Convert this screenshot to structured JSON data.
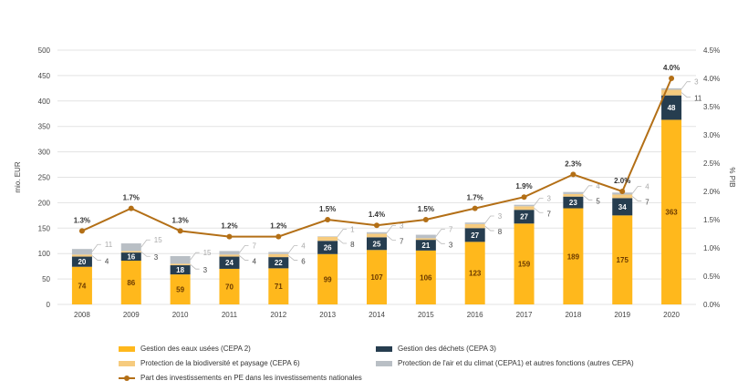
{
  "chart_data": {
    "type": "bar",
    "stacked": true,
    "categories": [
      "2008",
      "2009",
      "2010",
      "2011",
      "2012",
      "2013",
      "2014",
      "2015",
      "2016",
      "2017",
      "2018",
      "2019",
      "2020"
    ],
    "series": [
      {
        "name": "Gestion des eaux usées (CEPA 2)",
        "color": "#FFB81C",
        "values": [
          74,
          86,
          59,
          70,
          71,
          99,
          107,
          106,
          123,
          159,
          189,
          175,
          363
        ]
      },
      {
        "name": "Gestion des déchets (CEPA 3)",
        "color": "#263D4F",
        "values": [
          20,
          16,
          18,
          24,
          22,
          26,
          25,
          21,
          27,
          27,
          23,
          34,
          48
        ]
      },
      {
        "name": "Protection de la biodiversité et paysage (CEPA 6)",
        "color": "#F6CB7E",
        "values": [
          4,
          3,
          3,
          4,
          6,
          8,
          7,
          3,
          8,
          7,
          5,
          7,
          11
        ]
      },
      {
        "name": "Protection de l'air et du climat (CEPA1) et autres fonctions (autres CEPA)",
        "color": "#B9BFC5",
        "values": [
          11,
          15,
          15,
          7,
          4,
          1,
          3,
          7,
          3,
          3,
          4,
          4,
          3
        ]
      }
    ],
    "line": {
      "name": "Part des investissements en PE dans les investissements nationales",
      "color": "#B36F16",
      "axis": "right",
      "values": [
        1.3,
        1.7,
        1.3,
        1.2,
        1.2,
        1.5,
        1.4,
        1.5,
        1.7,
        1.9,
        2.3,
        2.0,
        4.0
      ],
      "labels": [
        "1.3%",
        "1.7%",
        "1.3%",
        "1.2%",
        "1.2%",
        "1.5%",
        "1.4%",
        "1.5%",
        "1.7%",
        "1.9%",
        "2.3%",
        "2.0%",
        "4.0%"
      ]
    },
    "ylabel": "mio. EUR",
    "y2label": "% PIB",
    "ylim": [
      0,
      500
    ],
    "y2lim": [
      0,
      4.5
    ],
    "yticks": [
      "0",
      "50",
      "100",
      "150",
      "200",
      "250",
      "300",
      "350",
      "400",
      "450",
      "500"
    ],
    "y2ticks": [
      "0.0%",
      "0.5%",
      "1.0%",
      "1.5%",
      "2.0%",
      "2.5%",
      "3.0%",
      "3.5%",
      "4.0%",
      "4.5%"
    ],
    "grid": true,
    "legend_position": "bottom"
  }
}
